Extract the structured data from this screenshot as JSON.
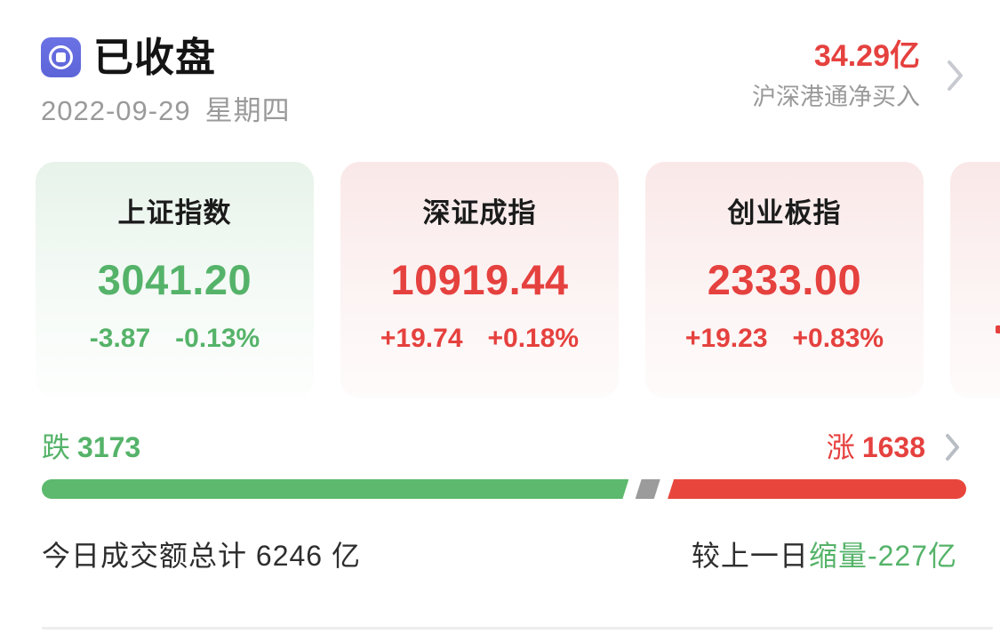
{
  "header": {
    "status_title": "已收盘",
    "date": "2022-09-29",
    "weekday": "星期四",
    "northbound_value": "34.29亿",
    "northbound_label": "沪深港通净买入"
  },
  "indices": [
    {
      "name": "上证指数",
      "value": "3041.20",
      "change": "-3.87",
      "change_pct": "-0.13%",
      "direction": "down"
    },
    {
      "name": "深证成指",
      "value": "10919.44",
      "change": "+19.74",
      "change_pct": "+0.18%",
      "direction": "up"
    },
    {
      "name": "创业板指",
      "value": "2333.00",
      "change": "+19.23",
      "change_pct": "+0.83%",
      "direction": "up"
    }
  ],
  "breadth": {
    "decliners_label": "跌",
    "decliners_count": "3173",
    "advancers_label": "涨",
    "advancers_count": "1638",
    "bar": {
      "down_width_pct": 63.5,
      "flat_left_pct": 64.2,
      "flat_width_pct": 2.7,
      "up_left_pct": 67.7,
      "up_width_pct": 32.3
    }
  },
  "turnover": {
    "today_text": "今日成交额总计 6246 亿",
    "vs_prev_label": "较上一日",
    "vs_prev_highlight": "缩量-227亿"
  },
  "colors": {
    "up_red": "#e5413e",
    "down_green": "#55b369",
    "bar_red": "#e8463c",
    "bar_green": "#5cb96d",
    "bar_flat_gray": "#9b9b9b",
    "icon_indigo": "#6a72e4",
    "muted_gray": "#9a9a9a",
    "dark_text": "#2e2e2e"
  }
}
